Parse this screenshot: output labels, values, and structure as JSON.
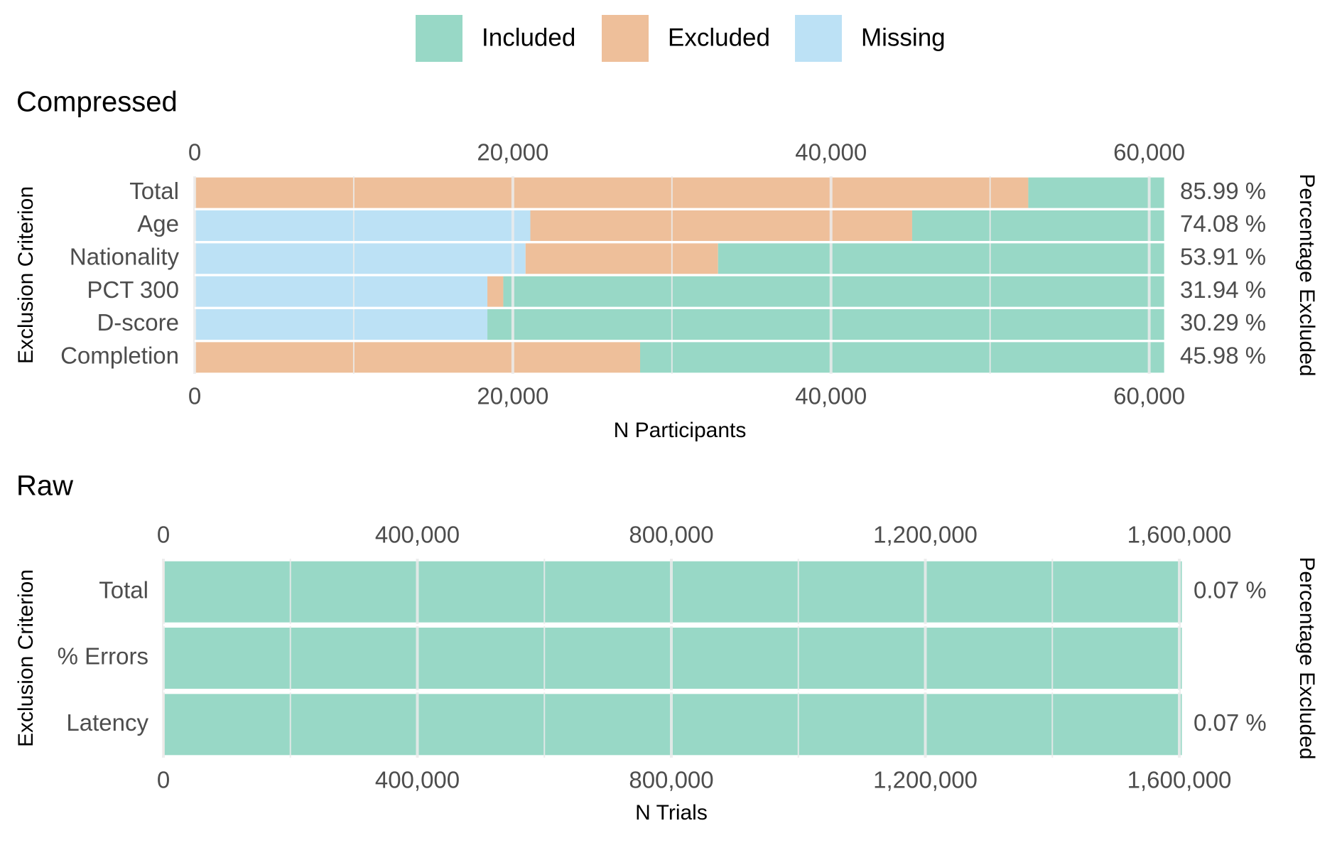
{
  "legend": {
    "position": "top",
    "items": [
      {
        "label": "Included",
        "color": "#98D8C6"
      },
      {
        "label": "Excluded",
        "color": "#EEBF9A"
      },
      {
        "label": "Missing",
        "color": "#BCE1F5"
      }
    ]
  },
  "chart_data": [
    {
      "type": "bar",
      "orientation": "horizontal",
      "stacked": true,
      "title": "Compressed",
      "xlabel": "N Participants",
      "ylabel": "Exclusion Criterion",
      "ylabel_right": "Percentage Excluded",
      "xlim": [
        0,
        61000
      ],
      "x_ticks": [
        0,
        20000,
        40000,
        60000
      ],
      "x_tick_labels": [
        "0",
        "20,000",
        "40,000",
        "60,000"
      ],
      "grid": true,
      "categories": [
        "Total",
        "Age",
        "Nationality",
        "PCT 300",
        "D-score",
        "Completion"
      ],
      "series": [
        {
          "name": "Missing",
          "values": [
            0,
            21100,
            20800,
            18400,
            18400,
            0
          ]
        },
        {
          "name": "Excluded",
          "values": [
            52400,
            24000,
            12100,
            1000,
            0,
            28000
          ]
        },
        {
          "name": "Included",
          "values": [
            8540,
            15840,
            28040,
            41540,
            42540,
            32940
          ]
        }
      ],
      "right_labels": [
        "85.99 %",
        "74.08 %",
        "53.91 %",
        "31.94 %",
        "30.29 %",
        "45.98 %"
      ]
    },
    {
      "type": "bar",
      "orientation": "horizontal",
      "stacked": true,
      "title": "Raw",
      "xlabel": "N Trials",
      "ylabel": "Exclusion Criterion",
      "ylabel_right": "Percentage Excluded",
      "xlim": [
        0,
        1600000
      ],
      "x_ticks": [
        0,
        400000,
        800000,
        1200000,
        1600000
      ],
      "x_tick_labels": [
        "0",
        "400,000",
        "800,000",
        "1,200,000",
        "1,600,000"
      ],
      "grid": true,
      "categories": [
        "Total",
        "% Errors",
        "Latency"
      ],
      "series": [
        {
          "name": "Missing",
          "values": [
            0,
            0,
            0
          ]
        },
        {
          "name": "Excluded",
          "values": [
            1100,
            0,
            1100
          ]
        },
        {
          "name": "Included",
          "values": [
            1602900,
            1604000,
            1602900
          ]
        }
      ],
      "right_labels": [
        "0.07 %",
        "",
        "0.07 %"
      ]
    }
  ]
}
